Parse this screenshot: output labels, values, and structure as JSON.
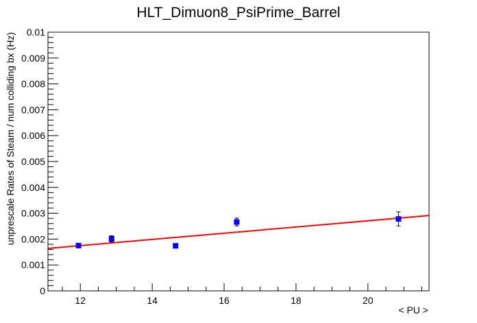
{
  "chart_data": {
    "type": "scatter",
    "title": "HLT_Dimuon8_PsiPrime_Barrel",
    "xlabel": "< PU >",
    "ylabel": "unprescale Rates of Steam / num colliding bx (Hz)",
    "xlim": [
      11.1,
      21.7
    ],
    "ylim": [
      0,
      0.01
    ],
    "x_ticks": [
      12,
      14,
      16,
      18,
      20
    ],
    "x_tick_labels": [
      "12",
      "14",
      "16",
      "18",
      "20"
    ],
    "y_ticks": [
      0,
      0.001,
      0.002,
      0.003,
      0.004,
      0.005,
      0.006,
      0.007,
      0.008,
      0.009,
      0.01
    ],
    "y_tick_labels": [
      "0",
      "0.001",
      "0.002",
      "0.003",
      "0.004",
      "0.005",
      "0.006",
      "0.007",
      "0.008",
      "0.009",
      "0.01"
    ],
    "grid": false,
    "legend": "none",
    "series": [
      {
        "x": [
          11.95,
          12.87,
          14.65,
          16.35,
          20.85
        ],
        "y": [
          0.00175,
          0.00201,
          0.00174,
          0.00266,
          0.00278
        ],
        "yerr": [
          6e-05,
          0.00012,
          8e-05,
          0.00015,
          0.00027
        ],
        "color": "#0000ff"
      }
    ],
    "fit": {
      "type": "linear",
      "x": [
        11.1,
        21.7
      ],
      "y": [
        0.00164,
        0.00291
      ],
      "color": "#ff0000"
    }
  }
}
